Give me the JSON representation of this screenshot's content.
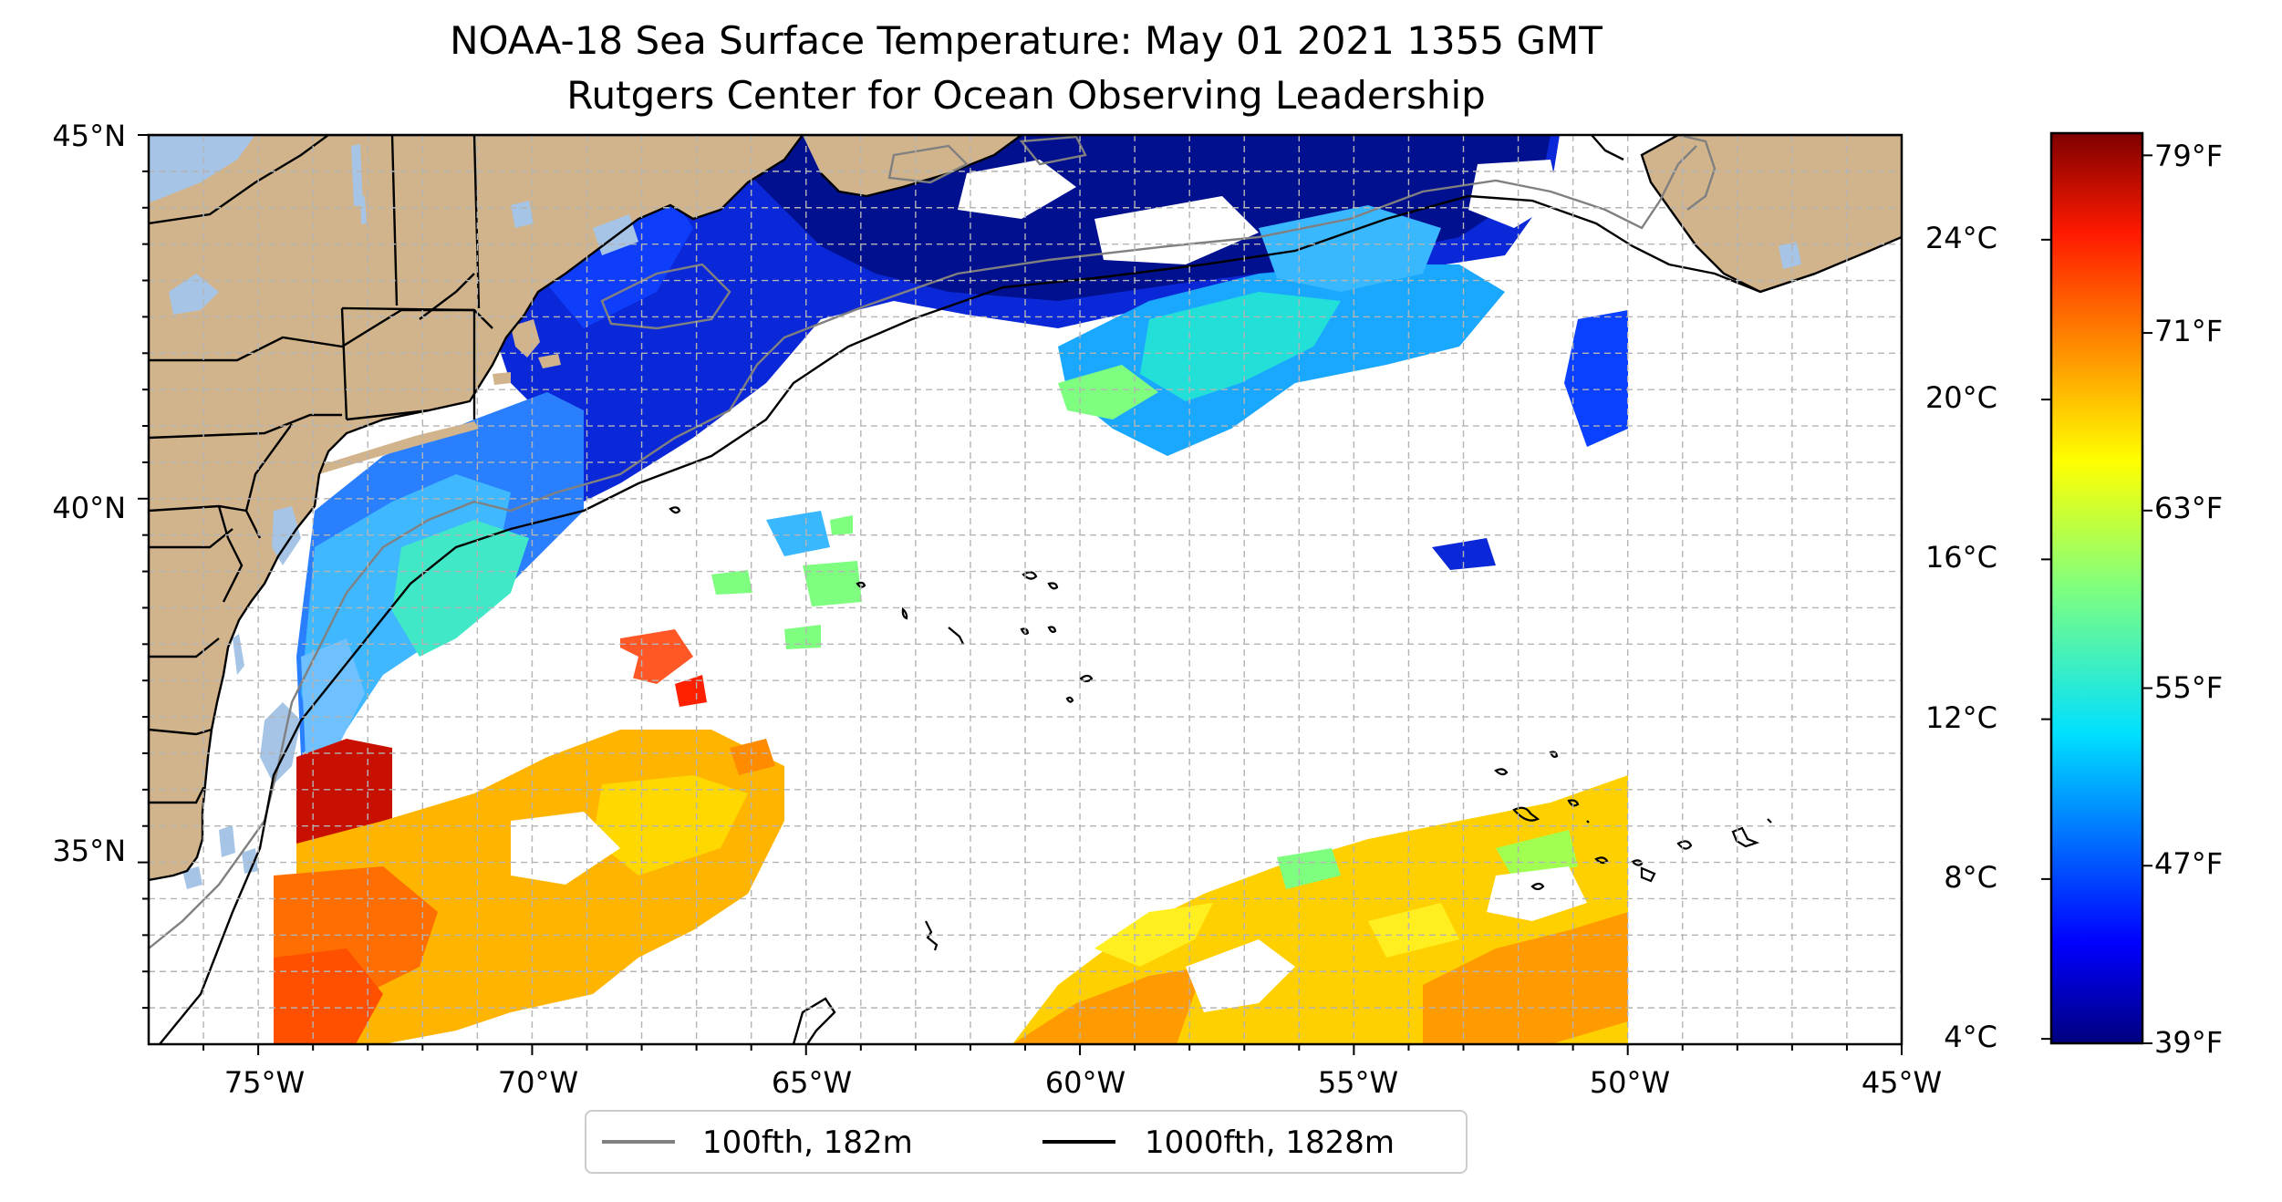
{
  "title": {
    "line1": "NOAA-18 Sea Surface Temperature: May 01 2021 1355 GMT",
    "line2": "Rutgers Center for Ocean Observing Leadership"
  },
  "map": {
    "lon_range": [
      -77,
      -45
    ],
    "lat_range": [
      32.5,
      45
    ],
    "lat_labels": [
      "45°N",
      "40°N",
      "35°N"
    ],
    "lon_labels": [
      "75°W",
      "70°W",
      "65°W",
      "60°W",
      "55°W",
      "50°W",
      "45°W"
    ],
    "land_color": "#d2b48c",
    "water_color": "#a5c4e6",
    "gridlines": true
  },
  "legend": {
    "placement": "bottom-center",
    "items": [
      {
        "label": "100fth, 182m",
        "color": "#808080"
      },
      {
        "label": "1000fth, 1828m",
        "color": "#000000"
      }
    ]
  },
  "colorbar": {
    "colormap": "jet",
    "celsius_labels": [
      "24°C",
      "20°C",
      "16°C",
      "12°C",
      "8°C",
      "4°C"
    ],
    "fahrenheit_labels": [
      "79°F",
      "71°F",
      "63°F",
      "55°F",
      "47°F",
      "39°F"
    ],
    "range_f": [
      39,
      80
    ]
  }
}
